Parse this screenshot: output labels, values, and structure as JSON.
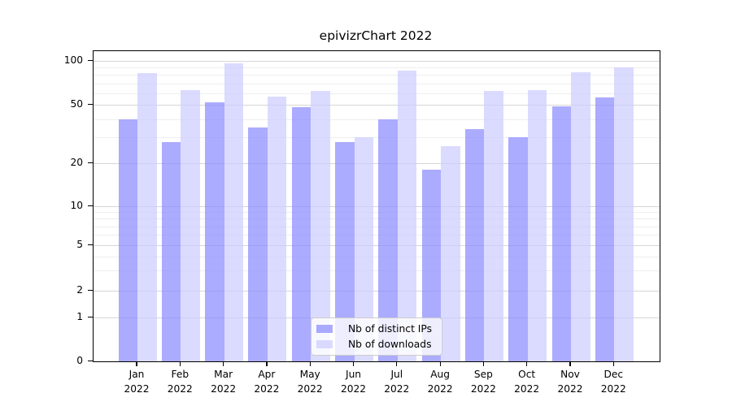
{
  "chart_data": {
    "type": "bar",
    "title": "epivizrChart 2022",
    "categories": [
      "Jan",
      "Feb",
      "Mar",
      "Apr",
      "May",
      "Jun",
      "Jul",
      "Aug",
      "Sep",
      "Oct",
      "Nov",
      "Dec"
    ],
    "category_year": "2022",
    "series": [
      {
        "name": "Nb of distinct IPs",
        "color": "#8888ff",
        "values": [
          40,
          28,
          52,
          35,
          48,
          28,
          40,
          18,
          34,
          30,
          49,
          56
        ]
      },
      {
        "name": "Nb of downloads",
        "color": "#ccccff",
        "values": [
          82,
          63,
          96,
          57,
          62,
          30,
          86,
          26,
          62,
          63,
          84,
          90
        ]
      }
    ],
    "bar_alpha": 0.7,
    "xlabel": "",
    "ylabel": "",
    "y_axis": {
      "scale": "log-like",
      "major_ticks": [
        0,
        1,
        2,
        5,
        10,
        20,
        50,
        100
      ],
      "minor_gridlines": [
        3,
        4,
        6,
        7,
        8,
        9,
        30,
        40,
        60,
        70,
        80,
        90
      ],
      "ylim": [
        0,
        117
      ]
    },
    "grid": true,
    "legend": {
      "position": "lower center"
    },
    "colors": {
      "major_grid": "#d6d6d6",
      "minor_grid": "#eeeeee",
      "axis": "#000000",
      "text": "#000000",
      "background": "#ffffff"
    }
  }
}
